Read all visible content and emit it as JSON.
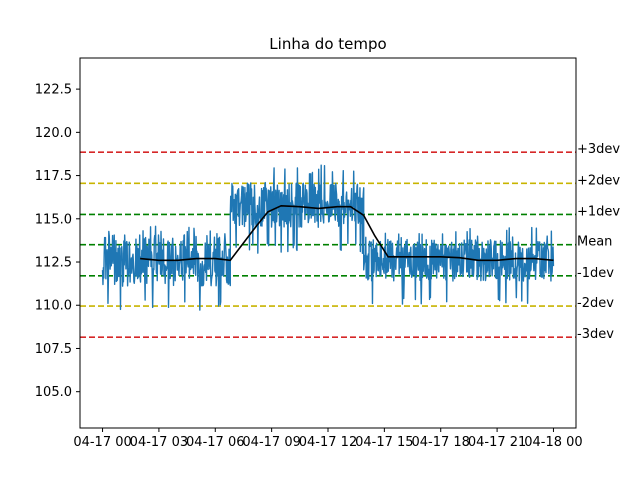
{
  "chart_data": {
    "type": "line",
    "title": "Linha do tempo",
    "xlabel": "",
    "ylabel": "",
    "x_range_hours": [
      -1.2,
      25.2
    ],
    "ylim": [
      102.9,
      124.3
    ],
    "x_ticks": [
      {
        "hour": 0,
        "label": "04-17 00"
      },
      {
        "hour": 3,
        "label": "04-17 03"
      },
      {
        "hour": 6,
        "label": "04-17 06"
      },
      {
        "hour": 9,
        "label": "04-17 09"
      },
      {
        "hour": 12,
        "label": "04-17 12"
      },
      {
        "hour": 15,
        "label": "04-17 15"
      },
      {
        "hour": 18,
        "label": "04-17 18"
      },
      {
        "hour": 21,
        "label": "04-17 21"
      },
      {
        "hour": 24,
        "label": "04-18 00"
      }
    ],
    "y_ticks": [
      {
        "value": 105.0,
        "label": "105.0"
      },
      {
        "value": 107.5,
        "label": "107.5"
      },
      {
        "value": 110.0,
        "label": "110.0"
      },
      {
        "value": 112.5,
        "label": "112.5"
      },
      {
        "value": 115.0,
        "label": "115.0"
      },
      {
        "value": 117.5,
        "label": "117.5"
      },
      {
        "value": 120.0,
        "label": "120.0"
      },
      {
        "value": 122.5,
        "label": "122.5"
      }
    ],
    "reference_lines": [
      {
        "label": "+3dev",
        "value": 118.85,
        "color": "#d62728"
      },
      {
        "label": "+2dev",
        "value": 117.05,
        "color": "#c8b400"
      },
      {
        "label": "+1dev",
        "value": 115.25,
        "color": "#008000"
      },
      {
        "label": "Mean",
        "value": 113.5,
        "color": "#008000"
      },
      {
        "label": "-1dev",
        "value": 111.7,
        "color": "#008000"
      },
      {
        "label": "-2dev",
        "value": 109.95,
        "color": "#c8b400"
      },
      {
        "label": "-3dev",
        "value": 108.15,
        "color": "#d62728"
      }
    ],
    "series": [
      {
        "color": "#1f77b4",
        "noisy": true,
        "segments": [
          {
            "start_hour": 0,
            "end_hour": 6.8,
            "center": 112.6,
            "amplitude": 1.5,
            "min": 109.7,
            "max": 114.6
          },
          {
            "start_hour": 6.8,
            "end_hour": 13.9,
            "center": 115.8,
            "amplitude": 1.3,
            "min": 113.0,
            "max": 118.1
          },
          {
            "start_hour": 13.9,
            "end_hour": 24,
            "center": 112.6,
            "amplitude": 1.2,
            "min": 110.0,
            "max": 114.5
          }
        ]
      },
      {
        "color": "#000000",
        "noisy": false,
        "x_hours": [
          2.0,
          3.0,
          4.0,
          5.0,
          6.0,
          6.8,
          7.5,
          8.2,
          8.8,
          9.5,
          10.5,
          11.5,
          12.5,
          13.2,
          13.9,
          14.5,
          15.2,
          16.0,
          17.0,
          18.0,
          19.0,
          20.0,
          21.0,
          22.0,
          23.0,
          24.0
        ],
        "y": [
          112.7,
          112.6,
          112.6,
          112.7,
          112.7,
          112.6,
          113.6,
          114.6,
          115.4,
          115.75,
          115.7,
          115.6,
          115.7,
          115.7,
          115.2,
          114.0,
          112.8,
          112.8,
          112.8,
          112.8,
          112.75,
          112.6,
          112.6,
          112.7,
          112.7,
          112.6
        ]
      }
    ]
  }
}
